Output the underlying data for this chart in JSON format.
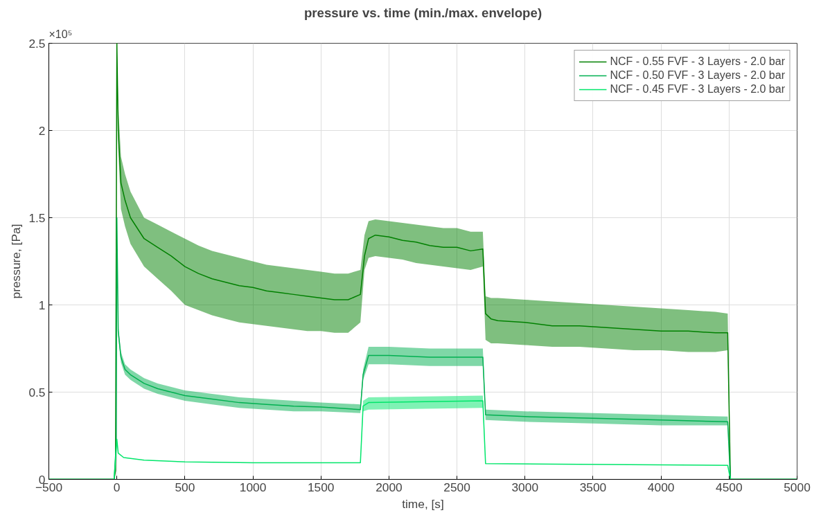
{
  "chart_data": {
    "type": "line",
    "title": "pressure vs. time (min./max. envelope)",
    "xlabel": "time, [s]",
    "ylabel": "pressure, [Pa]",
    "annotations": [
      "×10⁵"
    ],
    "xlim": [
      -500,
      5000
    ],
    "xticks": [
      -500,
      0,
      500,
      1000,
      1500,
      2000,
      2500,
      3000,
      3500,
      4000,
      4500,
      5000
    ],
    "ylim": [
      0,
      2.5
    ],
    "yticks": [
      0,
      0.5,
      1,
      1.5,
      2,
      2.5
    ],
    "grid": true,
    "legend": "top right",
    "line_style": "solid",
    "marker": "none",
    "series": [
      {
        "name": "NCF - 0.55 FVF - 3 Layers - 2.0 bar",
        "color": "#008000",
        "x": [
          -500,
          -20,
          -10,
          0,
          10,
          30,
          60,
          100,
          200,
          300,
          400,
          500,
          600,
          700,
          800,
          900,
          1000,
          1100,
          1200,
          1300,
          1400,
          1500,
          1600,
          1700,
          1790,
          1820,
          1850,
          1900,
          2000,
          2100,
          2200,
          2300,
          2400,
          2500,
          2600,
          2690,
          2710,
          2750,
          2800,
          3000,
          3200,
          3400,
          3600,
          3800,
          4000,
          4200,
          4400,
          4490,
          4510,
          5000
        ],
        "values": [
          0,
          0,
          0.05,
          2.5,
          2.0,
          1.7,
          1.6,
          1.5,
          1.38,
          1.33,
          1.28,
          1.22,
          1.18,
          1.15,
          1.13,
          1.11,
          1.1,
          1.08,
          1.07,
          1.06,
          1.05,
          1.04,
          1.03,
          1.03,
          1.06,
          1.28,
          1.38,
          1.4,
          1.39,
          1.37,
          1.36,
          1.34,
          1.33,
          1.33,
          1.31,
          1.32,
          0.95,
          0.92,
          0.91,
          0.9,
          0.88,
          0.88,
          0.87,
          0.86,
          0.85,
          0.85,
          0.84,
          0.84,
          0,
          0
        ],
        "lower": [
          0,
          0,
          0.05,
          2.5,
          1.9,
          1.55,
          1.45,
          1.35,
          1.22,
          1.15,
          1.08,
          1.0,
          0.97,
          0.94,
          0.92,
          0.9,
          0.89,
          0.88,
          0.87,
          0.86,
          0.85,
          0.85,
          0.84,
          0.84,
          0.9,
          1.2,
          1.27,
          1.28,
          1.27,
          1.26,
          1.24,
          1.23,
          1.22,
          1.21,
          1.2,
          1.22,
          0.8,
          0.78,
          0.78,
          0.77,
          0.76,
          0.76,
          0.75,
          0.74,
          0.74,
          0.73,
          0.73,
          0.74,
          0,
          0
        ],
        "upper": [
          0,
          0,
          0.05,
          2.5,
          2.15,
          1.85,
          1.75,
          1.65,
          1.5,
          1.46,
          1.42,
          1.38,
          1.34,
          1.31,
          1.29,
          1.27,
          1.25,
          1.23,
          1.22,
          1.21,
          1.2,
          1.19,
          1.18,
          1.18,
          1.2,
          1.4,
          1.48,
          1.49,
          1.48,
          1.47,
          1.46,
          1.45,
          1.44,
          1.44,
          1.42,
          1.42,
          1.05,
          1.04,
          1.04,
          1.03,
          1.02,
          1.01,
          1.0,
          0.99,
          0.98,
          0.97,
          0.96,
          0.95,
          0,
          0
        ]
      },
      {
        "name": "NCF - 0.50 FVF - 3 Layers - 2.0 bar",
        "color": "#00b050",
        "x": [
          -500,
          -20,
          -5,
          0,
          10,
          30,
          60,
          100,
          200,
          300,
          400,
          500,
          700,
          900,
          1100,
          1300,
          1500,
          1790,
          1810,
          1850,
          2000,
          2300,
          2690,
          2710,
          3000,
          3500,
          4000,
          4490,
          4510,
          5000
        ],
        "values": [
          0,
          0,
          0.2,
          1.5,
          0.85,
          0.7,
          0.63,
          0.6,
          0.55,
          0.52,
          0.5,
          0.48,
          0.46,
          0.44,
          0.43,
          0.42,
          0.415,
          0.4,
          0.6,
          0.71,
          0.71,
          0.7,
          0.7,
          0.37,
          0.36,
          0.35,
          0.34,
          0.33,
          0,
          0
        ],
        "lower": [
          0,
          0,
          0.2,
          1.5,
          0.82,
          0.67,
          0.6,
          0.57,
          0.52,
          0.49,
          0.47,
          0.45,
          0.43,
          0.41,
          0.4,
          0.39,
          0.39,
          0.38,
          0.57,
          0.66,
          0.66,
          0.65,
          0.65,
          0.34,
          0.33,
          0.32,
          0.31,
          0.31,
          0,
          0
        ],
        "upper": [
          0,
          0,
          0.2,
          1.5,
          0.88,
          0.73,
          0.66,
          0.63,
          0.58,
          0.55,
          0.53,
          0.51,
          0.49,
          0.47,
          0.46,
          0.45,
          0.44,
          0.43,
          0.63,
          0.76,
          0.76,
          0.75,
          0.75,
          0.4,
          0.39,
          0.38,
          0.37,
          0.36,
          0,
          0
        ]
      },
      {
        "name": "NCF - 0.45 FVF - 3 Layers - 2.0 bar",
        "color": "#00e66a",
        "x": [
          -500,
          -20,
          0,
          10,
          50,
          200,
          500,
          1000,
          1790,
          1810,
          1850,
          2690,
          2710,
          4490,
          4510,
          5000
        ],
        "values": [
          0,
          0,
          0.23,
          0.15,
          0.125,
          0.11,
          0.1,
          0.095,
          0.095,
          0.42,
          0.44,
          0.45,
          0.09,
          0.08,
          0,
          0
        ],
        "lower": [
          0,
          0,
          0.23,
          0.15,
          0.125,
          0.11,
          0.1,
          0.095,
          0.095,
          0.39,
          0.4,
          0.41,
          0.09,
          0.08,
          0,
          0
        ],
        "upper": [
          0,
          0,
          0.23,
          0.15,
          0.125,
          0.11,
          0.1,
          0.095,
          0.095,
          0.45,
          0.47,
          0.48,
          0.09,
          0.08,
          0,
          0
        ]
      }
    ]
  }
}
